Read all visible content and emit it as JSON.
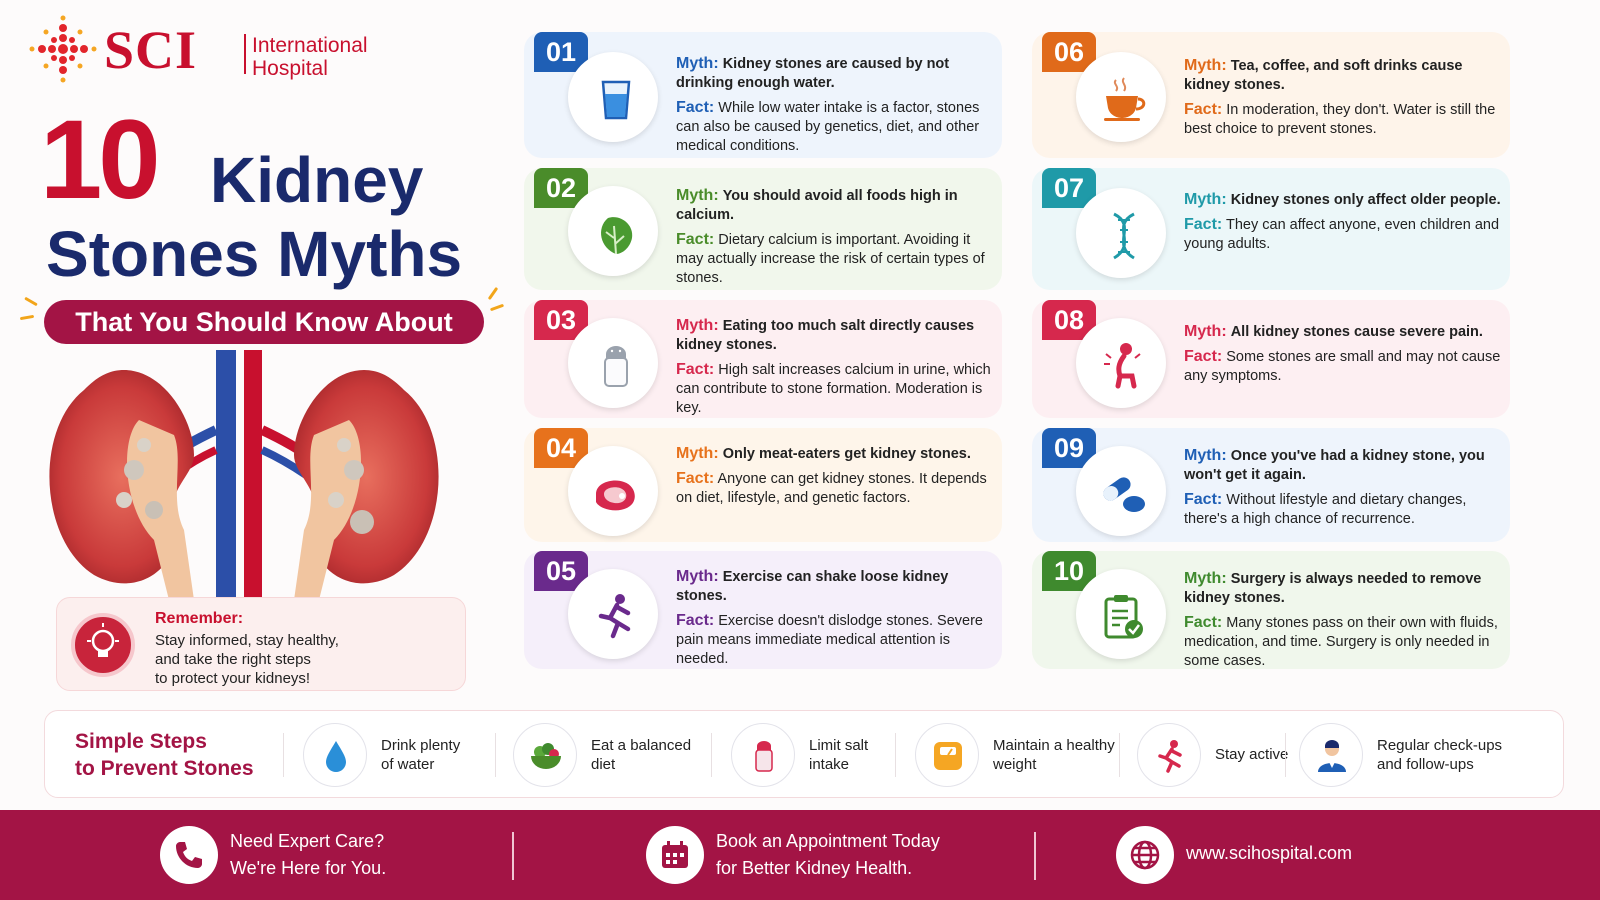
{
  "brand": {
    "name": "SCI",
    "subtitle_line1": "International",
    "subtitle_line2": "Hospital"
  },
  "title": {
    "number": "10",
    "word1": "Kidney",
    "line2": "Stones Myths",
    "tagline": "That You Should Know About"
  },
  "remember": {
    "heading": "Remember:",
    "line1": "Stay informed, stay healthy,",
    "line2": "and take the right steps",
    "line3": "to protect your kidneys!"
  },
  "labels": {
    "myth": "Myth:",
    "fact": "Fact:"
  },
  "myths": [
    {
      "num": "01",
      "color": "#1f5fb5",
      "bg": "#eef4fc",
      "icon": "water-glass-icon",
      "myth": "Kidney stones are caused by not drinking enough water.",
      "fact": "While low water intake is a factor, stones can also be caused by genetics, diet, and other medical conditions."
    },
    {
      "num": "02",
      "color": "#4a8c2a",
      "bg": "#f1f7ec",
      "icon": "leafy-greens-icon",
      "myth": "You should avoid all foods high in calcium.",
      "fact": "Dietary calcium is important. Avoiding it may actually increase the risk of certain types of stones."
    },
    {
      "num": "03",
      "color": "#d6284d",
      "bg": "#fdeff2",
      "icon": "salt-shaker-icon",
      "myth": "Eating too much salt directly causes kidney stones.",
      "fact": "High salt increases calcium in urine, which can contribute to stone formation. Moderation is key."
    },
    {
      "num": "04",
      "color": "#e7721c",
      "bg": "#fef5ea",
      "icon": "steak-icon",
      "myth": "Only meat-eaters get kidney stones.",
      "fact": "Anyone can get kidney stones. It depends on diet, lifestyle, and genetic factors."
    },
    {
      "num": "05",
      "color": "#6a2a8c",
      "bg": "#f5effa",
      "icon": "running-person-icon",
      "myth": "Exercise can shake loose kidney stones.",
      "fact": "Exercise doesn't dislodge stones. Severe pain means immediate medical attention is needed."
    },
    {
      "num": "06",
      "color": "#e06a1a",
      "bg": "#fef4ea",
      "icon": "tea-cup-icon",
      "myth": "Tea, coffee, and soft drinks cause kidney stones.",
      "fact": "In moderation, they don't. Water is still the best choice to prevent stones."
    },
    {
      "num": "07",
      "color": "#1f9aa8",
      "bg": "#ecf7f9",
      "icon": "dna-icon",
      "myth": "Kidney stones only affect older people.",
      "fact": "They can affect anyone, even children and young adults."
    },
    {
      "num": "08",
      "color": "#d6284d",
      "bg": "#fdeff2",
      "icon": "pain-person-icon",
      "myth": "All kidney stones cause severe pain.",
      "fact": "Some stones are small and may not cause any symptoms."
    },
    {
      "num": "09",
      "color": "#1f5fb5",
      "bg": "#eef4fc",
      "icon": "pills-icon",
      "myth": "Once you've had a kidney stone, you won't get it again.",
      "fact": "Without lifestyle and dietary changes, there's a high chance of recurrence."
    },
    {
      "num": "10",
      "color": "#3f8a2e",
      "bg": "#f0f7ec",
      "icon": "clipboard-check-icon",
      "myth": "Surgery is always needed to remove kidney stones.",
      "fact": "Many stones pass on their own with fluids, medication, and time. Surgery is only needed in some cases."
    }
  ],
  "steps": {
    "title_line1": "Simple Steps",
    "title_line2": "to Prevent Stones",
    "items": [
      {
        "label": "Drink plenty\nof water",
        "icon": "water-drop-icon"
      },
      {
        "label": "Eat a balanced\ndiet",
        "icon": "salad-bowl-icon"
      },
      {
        "label": "Limit salt\nintake",
        "icon": "salt-shaker-icon"
      },
      {
        "label": "Maintain a healthy\nweight",
        "icon": "scale-icon"
      },
      {
        "label": "Stay active",
        "icon": "running-person-icon"
      },
      {
        "label": "Regular check-ups\nand follow-ups",
        "icon": "doctor-icon"
      }
    ]
  },
  "footer": {
    "items": [
      {
        "text": "Need Expert Care?\nWe're Here for You.",
        "icon": "phone-icon"
      },
      {
        "text": "Book an Appointment Today\nfor Better Kidney Health.",
        "icon": "calendar-icon"
      },
      {
        "text": "www.scihospital.com",
        "icon": "globe-icon"
      }
    ]
  }
}
